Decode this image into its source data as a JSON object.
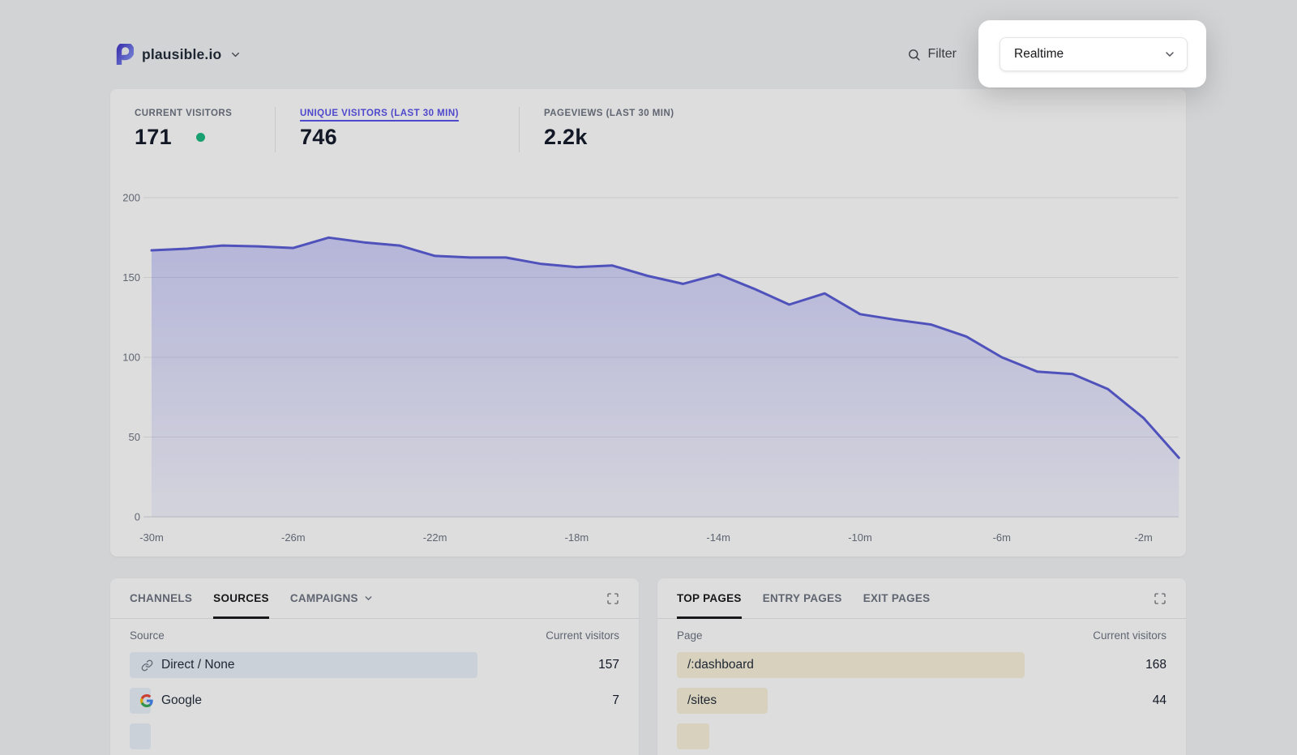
{
  "header": {
    "site_name": "plausible.io",
    "filter_label": "Filter",
    "realtime_selector": {
      "value": "Realtime"
    }
  },
  "stats": [
    {
      "label": "CURRENT VISITORS",
      "value": "171",
      "live": true,
      "active": false
    },
    {
      "label": "UNIQUE VISITORS (LAST 30 MIN)",
      "value": "746",
      "live": false,
      "active": true
    },
    {
      "label": "PAGEVIEWS (LAST 30 MIN)",
      "value": "2.2k",
      "live": false,
      "active": false
    }
  ],
  "chart_data": {
    "type": "area",
    "title": "Unique visitors (last 30 min)",
    "x_minutes": [
      -30,
      -29,
      -28,
      -27,
      -26,
      -25,
      -24,
      -23,
      -22,
      -21,
      -20,
      -19,
      -18,
      -17,
      -16,
      -15,
      -14,
      -13,
      -12,
      -11,
      -10,
      -9,
      -8,
      -7,
      -6,
      -5,
      -4,
      -3,
      -2,
      -1
    ],
    "values": [
      167,
      168,
      170,
      169.5,
      168.5,
      175,
      172,
      170,
      163.5,
      162.5,
      162.5,
      158.5,
      156.5,
      157.5,
      151,
      146,
      152,
      143,
      133,
      140,
      127,
      123.5,
      120.5,
      113,
      100,
      91,
      89.5,
      80,
      62,
      37
    ],
    "y_ticks": [
      0,
      50,
      100,
      150,
      200
    ],
    "x_tick_labels": [
      "-30m",
      "-26m",
      "-22m",
      "-18m",
      "-14m",
      "-10m",
      "-6m",
      "-2m"
    ],
    "x_tick_indices": [
      0,
      4,
      8,
      12,
      16,
      20,
      24,
      28
    ],
    "ylim": [
      0,
      200
    ],
    "grid": true,
    "legend": false,
    "line_color": "#5a5cd8",
    "fill_color": "#6366f1"
  },
  "sources_panel": {
    "tabs": [
      {
        "label": "CHANNELS",
        "active": false,
        "dropdown": false
      },
      {
        "label": "SOURCES",
        "active": true,
        "dropdown": false
      },
      {
        "label": "CAMPAIGNS",
        "active": false,
        "dropdown": true
      }
    ],
    "columns": [
      "Source",
      "Current visitors"
    ],
    "rows": [
      {
        "icon": "link-icon",
        "label": "Direct / None",
        "value": 157
      },
      {
        "icon": "google-icon",
        "label": "Google",
        "value": 7
      }
    ],
    "bar_color": "#e9f1fb",
    "partial_next_row": true,
    "partial_bar_width": 26
  },
  "pages_panel": {
    "tabs": [
      {
        "label": "TOP PAGES",
        "active": true,
        "dropdown": false
      },
      {
        "label": "ENTRY PAGES",
        "active": false,
        "dropdown": false
      },
      {
        "label": "EXIT PAGES",
        "active": false,
        "dropdown": false
      }
    ],
    "columns": [
      "Page",
      "Current visitors"
    ],
    "rows": [
      {
        "icon": null,
        "label": "/:dashboard",
        "value": 168
      },
      {
        "icon": null,
        "label": "/sites",
        "value": 44
      }
    ],
    "bar_color": "#f8f1da",
    "partial_next_row": true,
    "partial_bar_width": 40
  },
  "colors": {
    "accent": "#5850ec",
    "live_green": "#19b881",
    "dim_overlay": "rgba(24,24,27,0.15)"
  }
}
